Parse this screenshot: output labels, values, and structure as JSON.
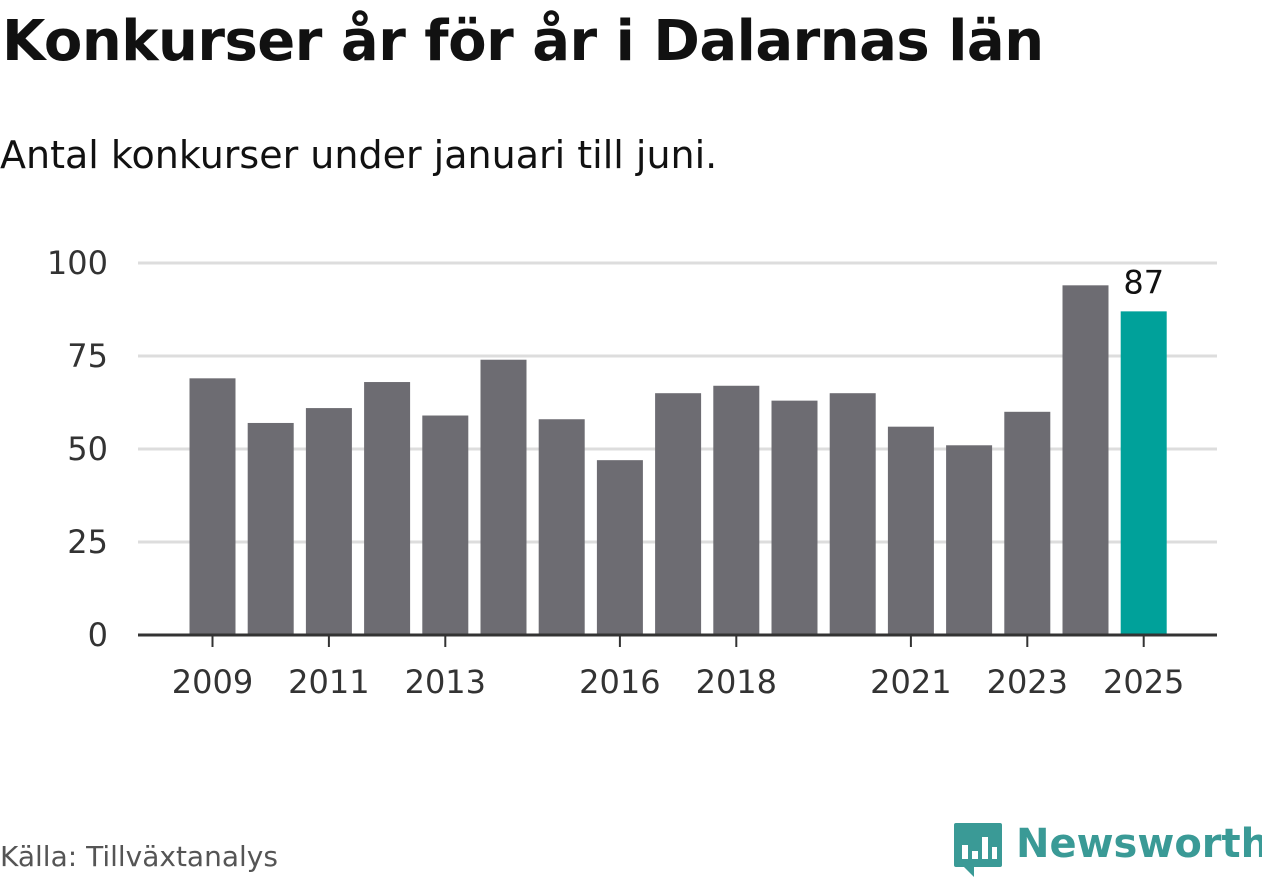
{
  "title": "Konkurser år för år i Dalarnas län",
  "subtitle": "Antal konkurser under januari till juni.",
  "source": "Källa: Tillväxtanalys",
  "brand": {
    "name": "Newsworthy",
    "color": "#3a9a96",
    "icon": "bar-chart-speech-bubble-icon"
  },
  "colors": {
    "bar": "#6d6c72",
    "highlight": "#00a19a",
    "grid": "#dddddd",
    "axis": "#333333"
  },
  "chart_data": {
    "type": "bar",
    "x": [
      2009,
      2010,
      2011,
      2012,
      2013,
      2014,
      2015,
      2016,
      2017,
      2018,
      2019,
      2020,
      2021,
      2022,
      2023,
      2024,
      2025
    ],
    "values": [
      69,
      57,
      61,
      68,
      59,
      74,
      58,
      47,
      65,
      67,
      63,
      65,
      56,
      51,
      60,
      94,
      87
    ],
    "x_tick_labels": [
      "2009",
      "2011",
      "2013",
      "2016",
      "2018",
      "2021",
      "2023",
      "2025"
    ],
    "y_ticks": [
      0,
      25,
      50,
      75,
      100
    ],
    "ylim": [
      0,
      100
    ],
    "highlight": {
      "x": 2025,
      "label": "87"
    },
    "grid": true,
    "legend": false
  }
}
